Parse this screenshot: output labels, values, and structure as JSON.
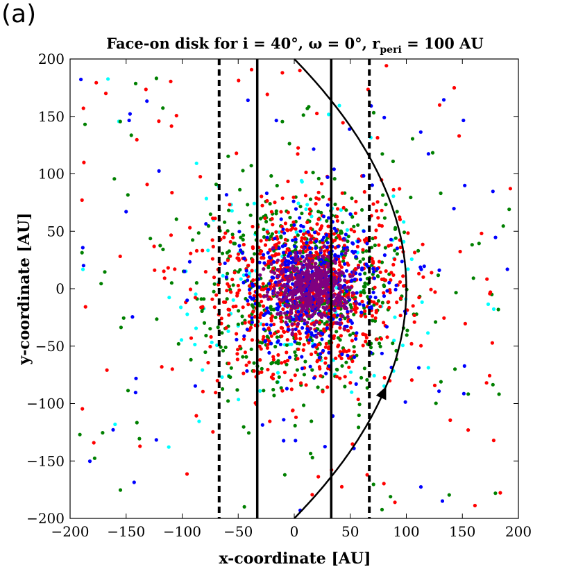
{
  "panel_label": "(a)",
  "chart_data": {
    "type": "scatter",
    "title": "Face-on disk for i = 40°, ω = 0°, r",
    "title_subscript": "peri",
    "title_suffix": " = 100 AU",
    "xlabel": "x-coordinate [AU]",
    "ylabel": "y-coordinate [AU]",
    "xlim": [
      -200,
      200
    ],
    "ylim": [
      -200,
      200
    ],
    "xticks": [
      -200,
      -150,
      -100,
      -50,
      0,
      50,
      100,
      150,
      200
    ],
    "yticks": [
      -200,
      -150,
      -100,
      -50,
      0,
      50,
      100,
      150,
      200
    ],
    "xtick_labels": [
      "−200",
      "−150",
      "−100",
      "−50",
      "0",
      "50",
      "100",
      "150",
      "200"
    ],
    "ytick_labels": [
      "−200",
      "−150",
      "−100",
      "−50",
      "0",
      "50",
      "100",
      "150",
      "200"
    ],
    "grid": false,
    "series": [
      {
        "name": "purple",
        "color": "#800080",
        "count": 500,
        "sigma": 15
      },
      {
        "name": "blue",
        "color": "#0000ff",
        "count": 450,
        "sigma": 32
      },
      {
        "name": "red",
        "color": "#ff0000",
        "count": 900,
        "sigma": 38
      },
      {
        "name": "green",
        "color": "#008000",
        "count": 650,
        "sigma": 42
      },
      {
        "name": "cyan",
        "color": "#00ffff",
        "count": 140,
        "sigma": 55
      }
    ],
    "vertical_lines": [
      {
        "x": -67,
        "style": "dashed"
      },
      {
        "x": -33,
        "style": "solid"
      },
      {
        "x": 33,
        "style": "solid"
      },
      {
        "x": 67,
        "style": "dashed"
      }
    ],
    "orbit": {
      "r_peri": 100,
      "shape": "parabola",
      "arrow_at": [
        62,
        -90
      ]
    }
  }
}
